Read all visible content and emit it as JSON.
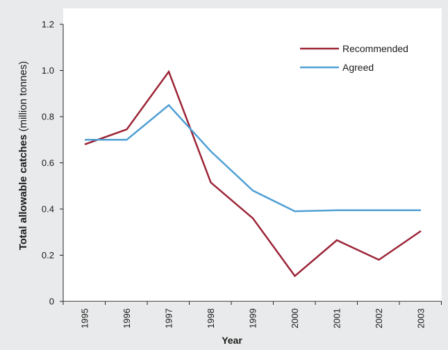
{
  "chart_data": {
    "type": "line",
    "x": [
      "1995",
      "1996",
      "1997",
      "1998",
      "1999",
      "2000",
      "2001",
      "2002",
      "2003"
    ],
    "series": [
      {
        "name": "Recommended",
        "color": "#9b2335",
        "values": [
          0.68,
          0.745,
          0.995,
          0.515,
          0.36,
          0.11,
          0.265,
          0.18,
          0.305
        ]
      },
      {
        "name": "Agreed",
        "color": "#4f9fd4",
        "values": [
          0.7,
          0.7,
          0.85,
          0.65,
          0.48,
          0.39,
          0.395,
          0.395,
          0.395
        ]
      }
    ],
    "xlabel": "Year",
    "ylabel_bold": "Total allowable catches",
    "ylabel_unit": " (million tonnes)",
    "ylim": [
      0,
      1.2
    ],
    "yticks": [
      "0",
      "0.2",
      "0.4",
      "0.6",
      "0.8",
      "1.0",
      "1.2"
    ],
    "legend_position": "top-right",
    "grid": false
  }
}
